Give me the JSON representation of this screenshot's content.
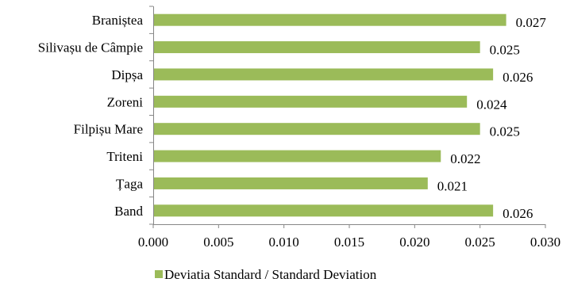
{
  "chart_data": {
    "type": "bar",
    "orientation": "horizontal",
    "categories": [
      "Braniștea",
      "Silivașu de Câmpie",
      "Dipșa",
      "Zoreni",
      "Filpișu Mare",
      "Triteni",
      "Țaga",
      "Band"
    ],
    "series": [
      {
        "name": "Deviatia Standard / Standard Deviation",
        "values": [
          0.027,
          0.025,
          0.026,
          0.024,
          0.025,
          0.022,
          0.021,
          0.026
        ],
        "data_labels": [
          "0.027",
          "0.025",
          "0.026",
          "0.024",
          "0.025",
          "0.022",
          "0.021",
          "0.026"
        ]
      }
    ],
    "x_ticks": [
      "0.000",
      "0.005",
      "0.010",
      "0.015",
      "0.020",
      "0.025",
      "0.030"
    ],
    "xlim": [
      0,
      0.03
    ],
    "grid": false,
    "legend": "bottom",
    "colors": {
      "bar": "#9bbb59",
      "axis": "#868686"
    }
  }
}
